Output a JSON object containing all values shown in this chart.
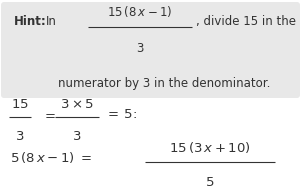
{
  "white_bg": "#ffffff",
  "hint_box_color": "#e8e8e8",
  "text_color": "#333333",
  "fig_width": 3.01,
  "fig_height": 1.9,
  "dpi": 100,
  "hint_bold": "Hint:",
  "hint_in": " In ",
  "hint_frac_num": "15(8 x − 1)",
  "hint_frac_den": "3",
  "hint_rest": ", divide 15 in the",
  "hint_line2": "numerator by 3 in the denominator.",
  "row2_num1": "15",
  "row2_den1": "3",
  "row2_eq1": "=",
  "row2_num2": "3×5",
  "row2_den2": "3",
  "row2_eq2": "= 5:",
  "row3_left": "5 (8 x − 1) =",
  "row3_frac_num": "15 (3 x + 10)",
  "row3_frac_den": "5"
}
